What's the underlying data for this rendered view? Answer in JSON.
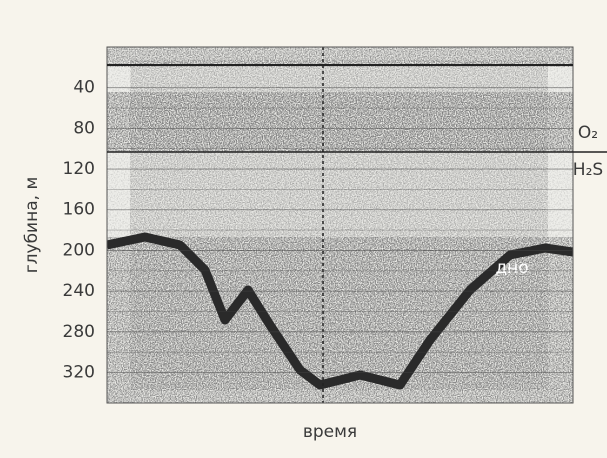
{
  "chart_data": {
    "type": "echogram",
    "xlabel": "время",
    "ylabel": "глубина, м",
    "ylim": [
      0,
      350
    ],
    "yticks": [
      40,
      80,
      120,
      160,
      200,
      240,
      280,
      320
    ],
    "grid": true,
    "inverted": true,
    "annotations": {
      "upper": "O₂",
      "lower": "H₂S",
      "bottom": "дно"
    }
  }
}
